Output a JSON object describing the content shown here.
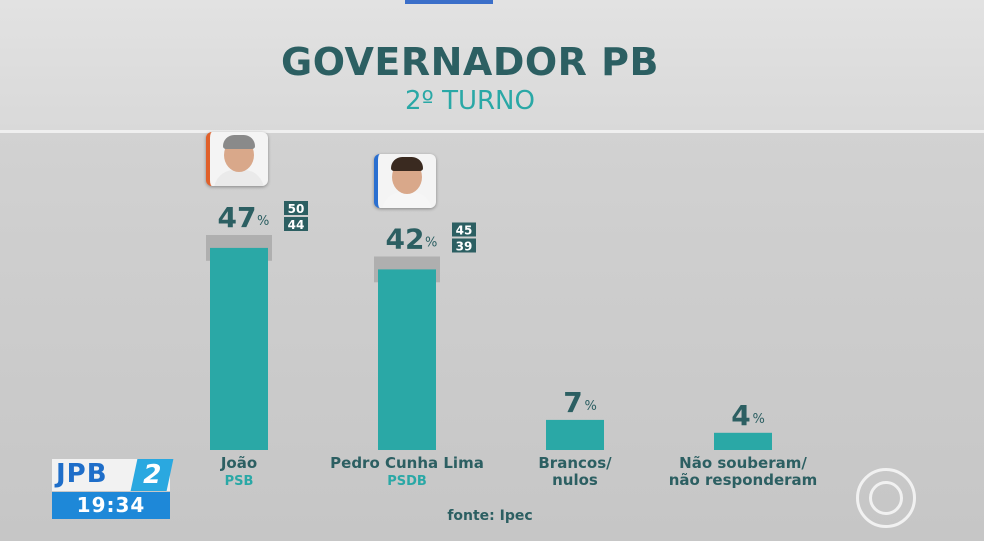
{
  "header": {
    "title": "GOVERNADOR PB",
    "subtitle": "2º TURNO"
  },
  "source": "fonte: Ipec",
  "tv": {
    "channel_name": "JPB",
    "channel_number": "2",
    "time": "19:34"
  },
  "colors": {
    "bar": "#2aa8a6",
    "title": "#2c5f62",
    "party": "#2aa8a6",
    "margin_band": "#a9a9a9",
    "range_box": "#2c5f62"
  },
  "icons": {
    "photo_1": "candidate-photo-icon",
    "photo_2": "candidate-photo-icon",
    "network_logo": "network-logo-icon"
  },
  "chart_data": {
    "type": "bar",
    "title": "GOVERNADOR PB",
    "subtitle": "2º TURNO",
    "unit": "%",
    "categories": [
      "João",
      "Pedro Cunha Lima",
      "Brancos/\nnulos",
      "Não souberam/\nnão responderam"
    ],
    "parties": [
      "PSB",
      "PSDB",
      "",
      ""
    ],
    "values": [
      47,
      42,
      7,
      4
    ],
    "ranges": [
      [
        44,
        50
      ],
      [
        39,
        45
      ],
      null,
      null
    ],
    "ylim": [
      0,
      50
    ],
    "grid": false,
    "legend": "none"
  }
}
